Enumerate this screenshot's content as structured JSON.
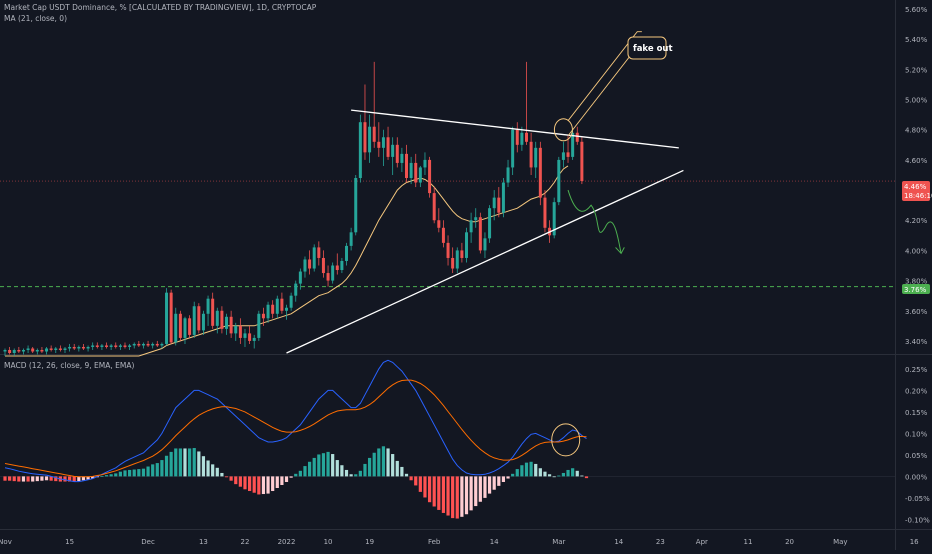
{
  "header": {
    "title": "Market Cap USDT Dominance, % [CALCULATED BY TRADINGVIEW], 1D, CRYPTOCAP",
    "ma_label": "MA (21, close, 0)",
    "macd_label": "MACD (12, 26, close, 9, EMA, EMA)"
  },
  "colors": {
    "background": "#131722",
    "up": "#26a69a",
    "down": "#ef5350",
    "ma": "#f5c77e",
    "macd_line": "#2962ff",
    "signal_line": "#ff6d00",
    "hist_up_strong": "#26a69a",
    "hist_up_weak": "#b2dfdb",
    "hist_down_strong": "#ff5252",
    "hist_down_weak": "#ffcdd2",
    "support": "#4caf50",
    "price_tag": "#ef5350",
    "support_tag": "#4caf50"
  },
  "annotation": {
    "label": "fake out"
  },
  "price_tag": {
    "value": "4.46%",
    "countdown": "18:46:10"
  },
  "support_tag": {
    "value": "3.76%"
  },
  "chart_data": [
    {
      "type": "candlestick",
      "title": "Market Cap USDT Dominance, %",
      "ylim": [
        3.32,
        5.66
      ],
      "y_ticks": [
        "5.60%",
        "5.40%",
        "5.20%",
        "5.00%",
        "4.80%",
        "4.60%",
        "4.40%",
        "4.20%",
        "4.00%",
        "3.80%",
        "3.60%",
        "3.40%"
      ],
      "y_tick_values": [
        5.6,
        5.4,
        5.2,
        5.0,
        4.8,
        4.6,
        4.4,
        4.2,
        4.0,
        3.8,
        3.6,
        3.4
      ],
      "x_ticks": [
        "Nov",
        "15",
        "Dec",
        "13",
        "22",
        "2022",
        "10",
        "19",
        "Feb",
        "14",
        "Mar",
        "14",
        "23",
        "Apr",
        "11",
        "20",
        "May",
        "16"
      ],
      "x_tick_days": [
        0,
        14,
        31,
        43,
        52,
        61,
        70,
        79,
        93,
        106,
        120,
        133,
        142,
        151,
        161,
        170,
        181,
        197
      ],
      "candles_start": "Nov 1",
      "ohlc": [
        [
          3.33,
          3.35,
          3.3,
          3.34
        ],
        [
          3.34,
          3.36,
          3.31,
          3.32
        ],
        [
          3.32,
          3.35,
          3.3,
          3.34
        ],
        [
          3.34,
          3.36,
          3.32,
          3.33
        ],
        [
          3.33,
          3.35,
          3.31,
          3.34
        ],
        [
          3.34,
          3.37,
          3.32,
          3.35
        ],
        [
          3.35,
          3.36,
          3.32,
          3.33
        ],
        [
          3.33,
          3.35,
          3.31,
          3.34
        ],
        [
          3.34,
          3.36,
          3.32,
          3.33
        ],
        [
          3.33,
          3.36,
          3.31,
          3.35
        ],
        [
          3.35,
          3.37,
          3.33,
          3.34
        ],
        [
          3.34,
          3.36,
          3.32,
          3.35
        ],
        [
          3.35,
          3.37,
          3.33,
          3.34
        ],
        [
          3.34,
          3.36,
          3.32,
          3.35
        ],
        [
          3.35,
          3.38,
          3.33,
          3.36
        ],
        [
          3.36,
          3.38,
          3.34,
          3.35
        ],
        [
          3.35,
          3.37,
          3.33,
          3.36
        ],
        [
          3.36,
          3.38,
          3.34,
          3.35
        ],
        [
          3.35,
          3.37,
          3.33,
          3.36
        ],
        [
          3.36,
          3.39,
          3.34,
          3.37
        ],
        [
          3.37,
          3.39,
          3.35,
          3.36
        ],
        [
          3.36,
          3.38,
          3.34,
          3.37
        ],
        [
          3.37,
          3.39,
          3.35,
          3.36
        ],
        [
          3.36,
          3.38,
          3.34,
          3.37
        ],
        [
          3.37,
          3.39,
          3.35,
          3.36
        ],
        [
          3.36,
          3.38,
          3.34,
          3.37
        ],
        [
          3.37,
          3.39,
          3.35,
          3.36
        ],
        [
          3.36,
          3.38,
          3.34,
          3.37
        ],
        [
          3.37,
          3.39,
          3.35,
          3.38
        ],
        [
          3.38,
          3.4,
          3.36,
          3.37
        ],
        [
          3.37,
          3.39,
          3.35,
          3.38
        ],
        [
          3.38,
          3.4,
          3.36,
          3.37
        ],
        [
          3.37,
          3.39,
          3.35,
          3.38
        ],
        [
          3.38,
          3.4,
          3.36,
          3.37
        ],
        [
          3.37,
          3.39,
          3.35,
          3.38
        ],
        [
          3.38,
          3.75,
          3.37,
          3.72
        ],
        [
          3.72,
          3.74,
          3.38,
          3.39
        ],
        [
          3.39,
          3.62,
          3.37,
          3.58
        ],
        [
          3.58,
          3.6,
          3.4,
          3.42
        ],
        [
          3.42,
          3.56,
          3.38,
          3.55
        ],
        [
          3.55,
          3.57,
          3.42,
          3.44
        ],
        [
          3.44,
          3.66,
          3.42,
          3.63
        ],
        [
          3.63,
          3.65,
          3.45,
          3.47
        ],
        [
          3.47,
          3.6,
          3.44,
          3.58
        ],
        [
          3.58,
          3.7,
          3.5,
          3.68
        ],
        [
          3.68,
          3.72,
          3.48,
          3.5
        ],
        [
          3.5,
          3.62,
          3.45,
          3.6
        ],
        [
          3.6,
          3.63,
          3.45,
          3.48
        ],
        [
          3.48,
          3.58,
          3.44,
          3.56
        ],
        [
          3.56,
          3.6,
          3.42,
          3.45
        ],
        [
          3.45,
          3.52,
          3.4,
          3.5
        ],
        [
          3.5,
          3.55,
          3.38,
          3.42
        ],
        [
          3.42,
          3.48,
          3.36,
          3.45
        ],
        [
          3.45,
          3.5,
          3.38,
          3.4
        ],
        [
          3.4,
          3.44,
          3.35,
          3.42
        ],
        [
          3.42,
          3.6,
          3.4,
          3.58
        ],
        [
          3.58,
          3.62,
          3.5,
          3.55
        ],
        [
          3.55,
          3.66,
          3.52,
          3.64
        ],
        [
          3.64,
          3.67,
          3.55,
          3.58
        ],
        [
          3.58,
          3.7,
          3.55,
          3.68
        ],
        [
          3.68,
          3.72,
          3.58,
          3.6
        ],
        [
          3.6,
          3.64,
          3.54,
          3.62
        ],
        [
          3.62,
          3.72,
          3.6,
          3.7
        ],
        [
          3.7,
          3.8,
          3.66,
          3.78
        ],
        [
          3.78,
          3.88,
          3.74,
          3.86
        ],
        [
          3.86,
          3.96,
          3.82,
          3.94
        ],
        [
          3.94,
          4.0,
          3.84,
          3.88
        ],
        [
          3.88,
          4.04,
          3.86,
          4.02
        ],
        [
          4.02,
          4.06,
          3.9,
          3.95
        ],
        [
          3.95,
          4.0,
          3.82,
          3.85
        ],
        [
          3.85,
          3.9,
          3.76,
          3.8
        ],
        [
          3.8,
          3.92,
          3.78,
          3.9
        ],
        [
          3.9,
          3.98,
          3.84,
          3.87
        ],
        [
          3.87,
          3.95,
          3.85,
          3.93
        ],
        [
          3.93,
          4.05,
          3.9,
          4.03
        ],
        [
          4.03,
          4.15,
          4.0,
          4.12
        ],
        [
          4.12,
          4.5,
          4.1,
          4.48
        ],
        [
          4.48,
          4.9,
          4.45,
          4.85
        ],
        [
          4.85,
          5.1,
          4.6,
          4.65
        ],
        [
          4.65,
          4.9,
          4.58,
          4.82
        ],
        [
          4.82,
          5.25,
          4.68,
          4.72
        ],
        [
          4.72,
          4.85,
          4.62,
          4.68
        ],
        [
          4.68,
          4.8,
          4.56,
          4.75
        ],
        [
          4.75,
          4.82,
          4.6,
          4.62
        ],
        [
          4.62,
          4.75,
          4.5,
          4.7
        ],
        [
          4.7,
          4.75,
          4.55,
          4.58
        ],
        [
          4.58,
          4.68,
          4.52,
          4.64
        ],
        [
          4.64,
          4.7,
          4.45,
          4.48
        ],
        [
          4.48,
          4.62,
          4.44,
          4.58
        ],
        [
          4.58,
          4.64,
          4.42,
          4.45
        ],
        [
          4.45,
          4.56,
          4.42,
          4.55
        ],
        [
          4.55,
          4.65,
          4.5,
          4.6
        ],
        [
          4.6,
          4.62,
          4.35,
          4.38
        ],
        [
          4.38,
          4.42,
          4.18,
          4.2
        ],
        [
          4.2,
          4.28,
          4.12,
          4.15
        ],
        [
          4.15,
          4.2,
          4.02,
          4.05
        ],
        [
          4.05,
          4.1,
          3.9,
          3.95
        ],
        [
          3.95,
          4.02,
          3.85,
          3.88
        ],
        [
          3.88,
          4.02,
          3.85,
          4.0
        ],
        [
          4.0,
          4.05,
          3.92,
          3.95
        ],
        [
          3.95,
          4.15,
          3.92,
          4.12
        ],
        [
          4.12,
          4.25,
          4.05,
          4.2
        ],
        [
          4.2,
          4.28,
          4.15,
          4.22
        ],
        [
          4.22,
          4.25,
          3.98,
          4.0
        ],
        [
          4.0,
          4.12,
          3.95,
          4.08
        ],
        [
          4.08,
          4.3,
          4.05,
          4.28
        ],
        [
          4.28,
          4.4,
          4.2,
          4.35
        ],
        [
          4.35,
          4.42,
          4.22,
          4.25
        ],
        [
          4.25,
          4.48,
          4.22,
          4.45
        ],
        [
          4.45,
          4.6,
          4.42,
          4.55
        ],
        [
          4.55,
          4.82,
          4.5,
          4.8
        ],
        [
          4.8,
          4.85,
          4.65,
          4.7
        ],
        [
          4.7,
          4.82,
          4.66,
          4.78
        ],
        [
          4.78,
          5.25,
          4.7,
          4.72
        ],
        [
          4.72,
          4.78,
          4.5,
          4.55
        ],
        [
          4.55,
          4.72,
          4.48,
          4.68
        ],
        [
          4.68,
          4.72,
          4.3,
          4.35
        ],
        [
          4.35,
          4.4,
          4.12,
          4.15
        ],
        [
          4.15,
          4.2,
          4.05,
          4.1
        ],
        [
          4.1,
          4.35,
          4.08,
          4.32
        ],
        [
          4.32,
          4.62,
          4.3,
          4.6
        ],
        [
          4.6,
          4.72,
          4.55,
          4.65
        ],
        [
          4.65,
          4.76,
          4.58,
          4.62
        ],
        [
          4.62,
          4.8,
          4.6,
          4.78
        ],
        [
          4.78,
          4.82,
          4.7,
          4.72
        ],
        [
          4.72,
          4.75,
          4.44,
          4.46
        ]
      ],
      "ma21": [
        3.3,
        3.3,
        3.3,
        3.3,
        3.3,
        3.3,
        3.3,
        3.3,
        3.3,
        3.3,
        3.3,
        3.3,
        3.3,
        3.3,
        3.3,
        3.3,
        3.3,
        3.3,
        3.3,
        3.3,
        3.3,
        3.3,
        3.3,
        3.3,
        3.3,
        3.3,
        3.3,
        3.3,
        3.3,
        3.3,
        3.31,
        3.32,
        3.33,
        3.34,
        3.35,
        3.37,
        3.38,
        3.39,
        3.4,
        3.41,
        3.42,
        3.43,
        3.44,
        3.45,
        3.46,
        3.47,
        3.48,
        3.49,
        3.5,
        3.5,
        3.5,
        3.5,
        3.5,
        3.5,
        3.5,
        3.51,
        3.52,
        3.53,
        3.54,
        3.55,
        3.56,
        3.57,
        3.58,
        3.6,
        3.62,
        3.64,
        3.66,
        3.68,
        3.7,
        3.71,
        3.72,
        3.74,
        3.76,
        3.78,
        3.81,
        3.85,
        3.9,
        3.96,
        4.02,
        4.08,
        4.14,
        4.2,
        4.25,
        4.3,
        4.35,
        4.4,
        4.43,
        4.45,
        4.46,
        4.47,
        4.48,
        4.47,
        4.45,
        4.42,
        4.38,
        4.34,
        4.3,
        4.26,
        4.23,
        4.21,
        4.2,
        4.19,
        4.19,
        4.2,
        4.21,
        4.22,
        4.23,
        4.24,
        4.25,
        4.26,
        4.27,
        4.28,
        4.3,
        4.32,
        4.34,
        4.35,
        4.36,
        4.38,
        4.41,
        4.45,
        4.5,
        4.54,
        4.56
      ]
    },
    {
      "type": "macd",
      "title": "MACD (12, 26, close, 9, EMA, EMA)",
      "ylim": [
        -0.12,
        0.28
      ],
      "y_ticks": [
        "0.25%",
        "0.20%",
        "0.15%",
        "0.10%",
        "0.05%",
        "0.00%",
        "-0.05%",
        "-0.10%"
      ],
      "y_tick_values": [
        0.25,
        0.2,
        0.15,
        0.1,
        0.05,
        0.0,
        -0.05,
        -0.1
      ],
      "macd": [
        0.02,
        0.018,
        0.015,
        0.012,
        0.01,
        0.008,
        0.006,
        0.005,
        0.004,
        0.003,
        0.0,
        -0.003,
        -0.006,
        -0.008,
        -0.01,
        -0.012,
        -0.012,
        -0.01,
        -0.008,
        -0.005,
        0.0,
        0.005,
        0.01,
        0.015,
        0.02,
        0.028,
        0.035,
        0.04,
        0.045,
        0.05,
        0.055,
        0.065,
        0.075,
        0.085,
        0.1,
        0.12,
        0.14,
        0.16,
        0.17,
        0.18,
        0.19,
        0.2,
        0.2,
        0.195,
        0.19,
        0.185,
        0.18,
        0.17,
        0.16,
        0.15,
        0.14,
        0.13,
        0.12,
        0.11,
        0.1,
        0.09,
        0.085,
        0.08,
        0.08,
        0.082,
        0.085,
        0.09,
        0.1,
        0.11,
        0.12,
        0.135,
        0.15,
        0.165,
        0.18,
        0.19,
        0.2,
        0.2,
        0.19,
        0.18,
        0.17,
        0.16,
        0.16,
        0.17,
        0.19,
        0.21,
        0.23,
        0.25,
        0.265,
        0.27,
        0.265,
        0.255,
        0.245,
        0.23,
        0.215,
        0.2,
        0.18,
        0.16,
        0.14,
        0.12,
        0.1,
        0.08,
        0.06,
        0.04,
        0.025,
        0.015,
        0.008,
        0.005,
        0.004,
        0.004,
        0.005,
        0.008,
        0.012,
        0.018,
        0.025,
        0.033,
        0.045,
        0.06,
        0.075,
        0.088,
        0.098,
        0.1,
        0.095,
        0.09,
        0.085,
        0.08,
        0.082,
        0.09,
        0.1,
        0.108,
        0.105,
        0.095,
        0.088
      ],
      "signal": [
        0.03,
        0.028,
        0.026,
        0.024,
        0.022,
        0.02,
        0.018,
        0.016,
        0.014,
        0.012,
        0.01,
        0.008,
        0.006,
        0.004,
        0.002,
        0.0,
        -0.001,
        -0.001,
        -0.001,
        0.0,
        0.002,
        0.004,
        0.007,
        0.01,
        0.013,
        0.017,
        0.021,
        0.025,
        0.029,
        0.033,
        0.037,
        0.042,
        0.047,
        0.054,
        0.062,
        0.072,
        0.083,
        0.095,
        0.105,
        0.115,
        0.125,
        0.134,
        0.142,
        0.148,
        0.153,
        0.157,
        0.16,
        0.162,
        0.162,
        0.16,
        0.158,
        0.154,
        0.15,
        0.144,
        0.138,
        0.132,
        0.126,
        0.12,
        0.114,
        0.109,
        0.105,
        0.103,
        0.103,
        0.104,
        0.107,
        0.111,
        0.116,
        0.122,
        0.129,
        0.136,
        0.143,
        0.148,
        0.152,
        0.154,
        0.155,
        0.155,
        0.155,
        0.157,
        0.161,
        0.167,
        0.175,
        0.185,
        0.195,
        0.205,
        0.213,
        0.219,
        0.223,
        0.224,
        0.224,
        0.221,
        0.216,
        0.209,
        0.2,
        0.19,
        0.178,
        0.165,
        0.151,
        0.137,
        0.123,
        0.109,
        0.096,
        0.084,
        0.073,
        0.063,
        0.055,
        0.048,
        0.043,
        0.04,
        0.038,
        0.038,
        0.039,
        0.043,
        0.049,
        0.056,
        0.064,
        0.071,
        0.076,
        0.079,
        0.08,
        0.08,
        0.08,
        0.082,
        0.085,
        0.089,
        0.092,
        0.093,
        0.092
      ]
    }
  ]
}
